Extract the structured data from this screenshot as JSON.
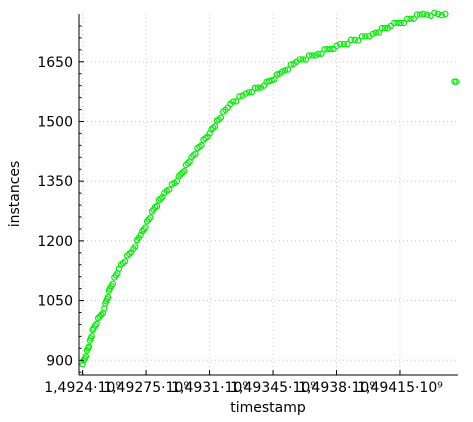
{
  "chart_data": {
    "type": "scatter",
    "xlabel": "timestamp",
    "ylabel": "instances",
    "x_tick_labels": [
      "1,4924·10⁹",
      "1,49275·10⁹",
      "1,4931·10⁹",
      "1,49345·10⁹",
      "1,4938·10⁹",
      "1,49415·10⁹"
    ],
    "x_tick_values": [
      1492400000.0,
      1492750000.0,
      1493100000.0,
      1493450000.0,
      1493800000.0,
      1494150000.0
    ],
    "y_ticks": [
      900,
      1050,
      1200,
      1350,
      1500,
      1650
    ],
    "xlim": [
      1492380000.0,
      1494470000.0
    ],
    "ylim": [
      863,
      1770
    ],
    "grid": true,
    "marker": "hollow-circle",
    "color": "#00ee00",
    "series": [
      {
        "x": [
          1492400000.0,
          1492430000.0,
          1492460000.0,
          1492520000.0,
          1492550000.0,
          1492600000.0,
          1492680000.0,
          1492720000.0,
          1492800000.0,
          1492850000.0,
          1492920000.0,
          1493000000.0,
          1493100000.0,
          1493150000.0,
          1493200000.0,
          1493230000.0,
          1493300000.0,
          1493400000.0,
          1493500000.0,
          1493580000.0,
          1493700000.0,
          1493800000.0,
          1493900000.0,
          1494000000.0,
          1494100000.0,
          1494280000.0,
          1494400000.0,
          1494450000.0,
          1494460000.0
        ],
        "y": [
          890,
          930,
          980,
          1030,
          1080,
          1130,
          1180,
          1215,
          1285,
          1320,
          1350,
          1410,
          1470,
          1505,
          1535,
          1550,
          1570,
          1590,
          1625,
          1650,
          1670,
          1690,
          1705,
          1720,
          1740,
          1770,
          1770,
          1600,
          1600
        ]
      }
    ]
  }
}
